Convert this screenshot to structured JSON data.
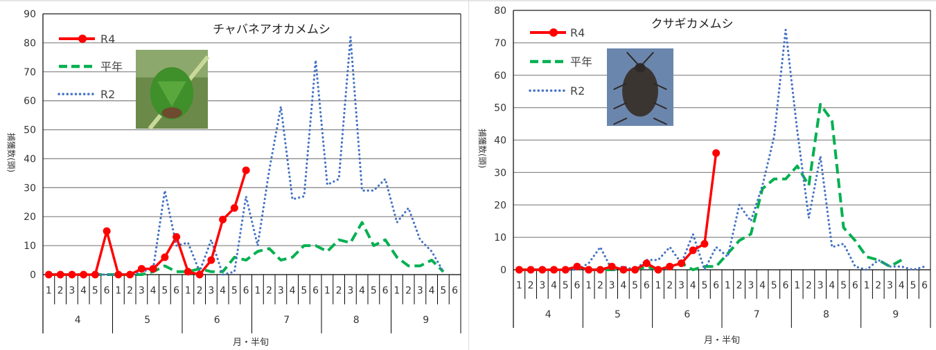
{
  "chart_data": [
    {
      "type": "line",
      "title": "チャバネアオカメムシ",
      "ylabel": "捕獲数(頭)",
      "xlabel": "月・半旬",
      "ylim": [
        0,
        90
      ],
      "yticks": [
        0,
        10,
        20,
        30,
        40,
        50,
        60,
        70,
        80,
        90
      ],
      "grid": true,
      "legend_position": "top-left",
      "months": [
        "4",
        "5",
        "6",
        "7",
        "8",
        "9"
      ],
      "half_month_labels": [
        "1",
        "2",
        "3",
        "4",
        "5",
        "6"
      ],
      "photo": "green-stink-bug-photo",
      "series": [
        {
          "name": "R4",
          "color": "#ff0000",
          "style": "solid-marker",
          "values": [
            0,
            0,
            0,
            0,
            0,
            15,
            0,
            0,
            2,
            2,
            6,
            13,
            1,
            0,
            5,
            19,
            23,
            36
          ]
        },
        {
          "name": "平年",
          "color": "#00b050",
          "style": "dashed",
          "values": [
            0,
            0,
            0,
            0,
            0,
            0,
            0,
            0,
            0,
            1,
            3,
            1,
            1,
            2,
            1,
            1,
            6,
            5,
            8,
            9,
            5,
            6,
            10,
            10,
            8,
            12,
            11,
            18,
            10,
            12,
            6,
            3,
            3,
            5,
            1
          ]
        },
        {
          "name": "R2",
          "color": "#4472c4",
          "style": "dotted",
          "values": [
            0,
            0,
            0,
            0,
            0,
            0,
            0,
            0,
            1,
            2,
            29,
            10,
            11,
            1,
            12,
            0,
            1,
            27,
            10,
            36,
            58,
            26,
            27,
            74,
            31,
            33,
            82,
            29,
            29,
            33,
            18,
            23,
            12,
            8,
            1
          ]
        }
      ]
    },
    {
      "type": "line",
      "title": "クサギカメムシ",
      "ylabel": "捕獲数(頭)",
      "xlabel": "月・半旬",
      "ylim": [
        0,
        80
      ],
      "yticks": [
        0,
        10,
        20,
        30,
        40,
        50,
        60,
        70,
        80
      ],
      "grid": true,
      "legend_position": "top-left",
      "months": [
        "4",
        "5",
        "6",
        "7",
        "8",
        "9"
      ],
      "half_month_labels": [
        "1",
        "2",
        "3",
        "4",
        "5",
        "6"
      ],
      "photo": "brown-marmorated-stink-bug-photo",
      "series": [
        {
          "name": "R4",
          "color": "#ff0000",
          "style": "solid-marker",
          "values": [
            0,
            0,
            0,
            0,
            0,
            1,
            0,
            0,
            1,
            0,
            0,
            2,
            0,
            1,
            2,
            6,
            8,
            36
          ]
        },
        {
          "name": "平年",
          "color": "#00b050",
          "style": "dashed",
          "values": [
            0,
            0,
            0,
            0,
            0,
            1,
            0,
            0,
            0,
            0,
            0,
            1,
            0,
            1,
            2,
            0,
            1,
            1,
            5,
            9,
            11,
            25,
            28,
            28,
            32,
            26,
            51,
            46,
            13,
            9,
            4,
            3,
            1,
            3
          ]
        },
        {
          "name": "R2",
          "color": "#4472c4",
          "style": "dotted",
          "values": [
            0,
            0,
            0,
            0,
            0,
            0,
            2,
            7,
            0,
            1,
            0,
            3,
            3,
            7,
            2,
            11,
            0,
            7,
            4,
            20,
            15,
            26,
            41,
            74,
            43,
            16,
            35,
            7,
            8,
            1,
            0,
            3,
            1,
            1,
            0,
            1
          ]
        }
      ]
    }
  ]
}
